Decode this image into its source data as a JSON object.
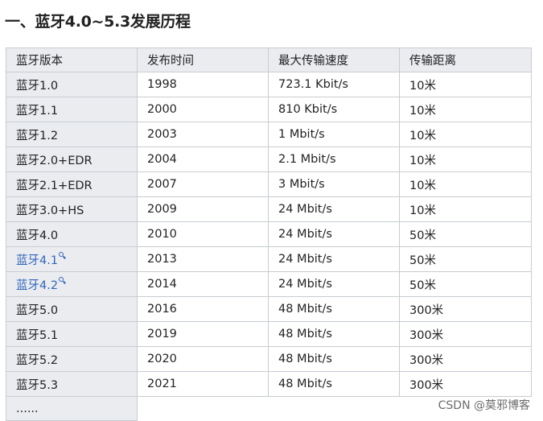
{
  "heading": "一、蓝牙4.0~5.3发展历程",
  "table": {
    "headers": [
      "蓝牙版本",
      "发布时间",
      "最大传输速度",
      "传输距离"
    ],
    "rows": [
      {
        "version": "蓝牙1.0",
        "year": "1998",
        "speed": "723.1 Kbit/s",
        "range": "10米",
        "link": false
      },
      {
        "version": "蓝牙1.1",
        "year": "2000",
        "speed": "810 Kbit/s",
        "range": "10米",
        "link": false
      },
      {
        "version": "蓝牙1.2",
        "year": "2003",
        "speed": "1 Mbit/s",
        "range": "10米",
        "link": false
      },
      {
        "version": "蓝牙2.0+EDR",
        "year": "2004",
        "speed": "2.1 Mbit/s",
        "range": "10米",
        "link": false
      },
      {
        "version": "蓝牙2.1+EDR",
        "year": "2007",
        "speed": "3 Mbit/s",
        "range": "10米",
        "link": false
      },
      {
        "version": "蓝牙3.0+HS",
        "year": "2009",
        "speed": "24 Mbit/s",
        "range": "10米",
        "link": false
      },
      {
        "version": "蓝牙4.0",
        "year": "2010",
        "speed": "24 Mbit/s",
        "range": "50米",
        "link": false
      },
      {
        "version": "蓝牙4.1",
        "year": "2013",
        "speed": "24 Mbit/s",
        "range": "50米",
        "link": true
      },
      {
        "version": "蓝牙4.2",
        "year": "2014",
        "speed": "24 Mbit/s",
        "range": "50米",
        "link": true
      },
      {
        "version": "蓝牙5.0",
        "year": "2016",
        "speed": "48 Mbit/s",
        "range": "300米",
        "link": false
      },
      {
        "version": "蓝牙5.1",
        "year": "2019",
        "speed": "48 Mbit/s",
        "range": "300米",
        "link": false
      },
      {
        "version": "蓝牙5.2",
        "year": "2020",
        "speed": "48 Mbit/s",
        "range": "300米",
        "link": false
      },
      {
        "version": "蓝牙5.3",
        "year": "2021",
        "speed": "48 Mbit/s",
        "range": "300米",
        "link": false
      }
    ],
    "more_text": "......"
  },
  "watermark": "CSDN @莫邪博客",
  "colors": {
    "header_bg": "#eaecf0",
    "border": "#c8ccd1",
    "link": "#3366bb"
  },
  "icons": {
    "link_suffix": "search-icon"
  }
}
